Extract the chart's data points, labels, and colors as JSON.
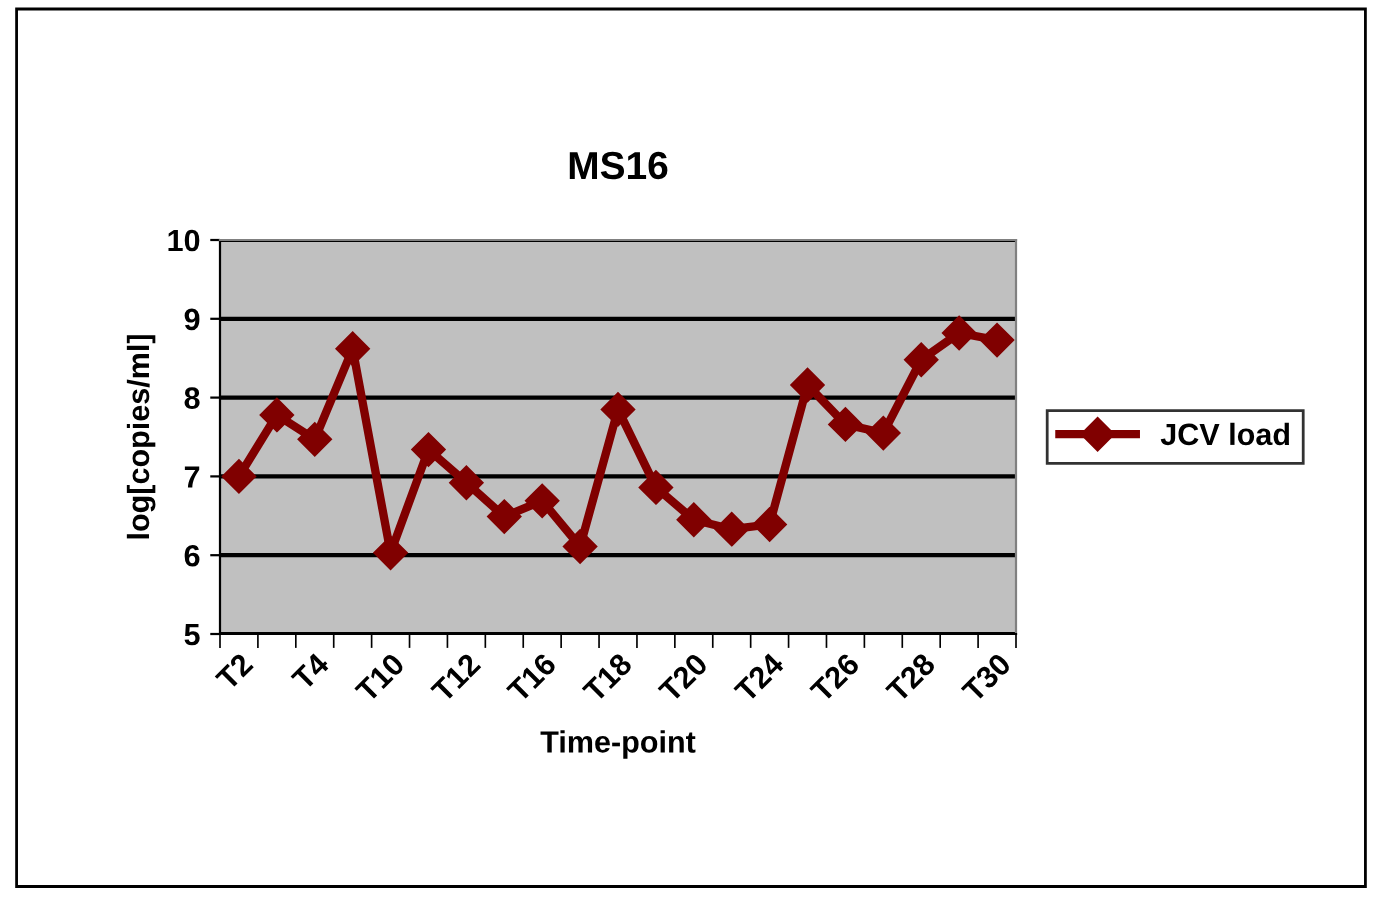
{
  "chart_data": {
    "type": "line",
    "title": "MS16",
    "xlabel": "Time-point",
    "ylabel": "log[copies/ml]",
    "categories": [
      "T2",
      null,
      "T4",
      null,
      "T10",
      null,
      "T12",
      null,
      "T16",
      null,
      "T18",
      null,
      "T20",
      null,
      "T24",
      null,
      "T26",
      null,
      "T28",
      null,
      "T30"
    ],
    "series": [
      {
        "name": "JCV load",
        "color": "#800000",
        "values": [
          7.0,
          7.78,
          7.47,
          8.62,
          6.03,
          7.34,
          6.92,
          6.49,
          6.69,
          6.11,
          7.85,
          6.86,
          6.45,
          6.33,
          6.39,
          8.16,
          7.66,
          7.55,
          8.48,
          8.82,
          8.73
        ]
      }
    ],
    "ylim": [
      5,
      10
    ],
    "yticks": [
      5,
      6,
      7,
      8,
      9,
      10
    ],
    "grid": "y",
    "legend": "right",
    "marker": "diamond",
    "line_style": "solid"
  }
}
